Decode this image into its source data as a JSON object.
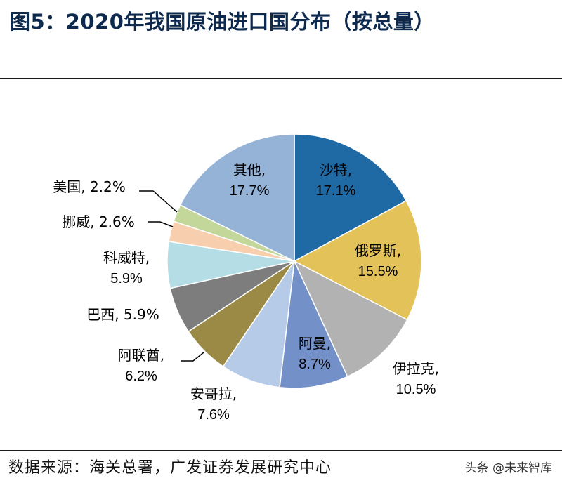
{
  "title": "图5：2020年我国原油进口国分布（按总量）",
  "source": "数据来源：海关总署，广发证券发展研究中心",
  "watermark": "头条 @未来智库",
  "chart_data": {
    "type": "pie",
    "unit": "%",
    "start": "12 o'clock, clockwise",
    "slices": [
      {
        "name": "沙特",
        "value": 17.1,
        "color": "#1f6aa5",
        "label": "沙特,",
        "pct": "17.1%"
      },
      {
        "name": "俄罗斯",
        "value": 15.5,
        "color": "#e4c25a",
        "label": "俄罗斯,",
        "pct": "15.5%"
      },
      {
        "name": "伊拉克",
        "value": 10.5,
        "color": "#b2b2b2",
        "label": "伊拉克,",
        "pct": "10.5%"
      },
      {
        "name": "阿曼",
        "value": 8.7,
        "color": "#7391c8",
        "label": "阿曼,",
        "pct": "8.7%"
      },
      {
        "name": "安哥拉",
        "value": 7.6,
        "color": "#b6cbe8",
        "label": "安哥拉,",
        "pct": "7.6%"
      },
      {
        "name": "阿联酋",
        "value": 6.2,
        "color": "#9a8a45",
        "label": "阿联酋,",
        "pct": "6.2%"
      },
      {
        "name": "巴西",
        "value": 5.9,
        "color": "#7d7d7d",
        "label": "巴西, 5.9%",
        "pct": ""
      },
      {
        "name": "科威特",
        "value": 5.9,
        "color": "#b4dde6",
        "label": "科威特,",
        "pct": "5.9%"
      },
      {
        "name": "挪威",
        "value": 2.6,
        "color": "#f8cfae",
        "label": "挪威, 2.6%",
        "pct": ""
      },
      {
        "name": "美国",
        "value": 2.2,
        "color": "#c3d79b",
        "label": "美国, 2.2%",
        "pct": ""
      },
      {
        "name": "其他",
        "value": 17.7,
        "color": "#95b3d7",
        "label": "其他,",
        "pct": "17.7%"
      }
    ]
  }
}
